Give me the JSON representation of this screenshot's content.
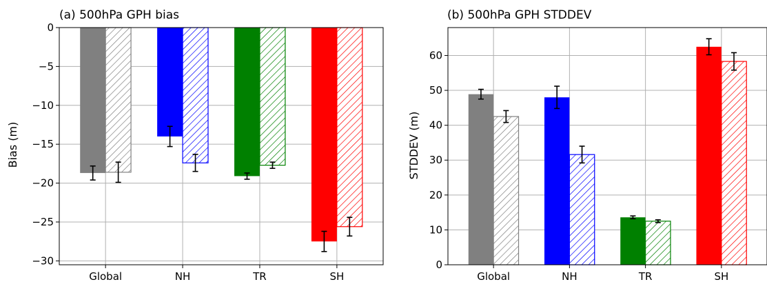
{
  "chart_data": [
    {
      "type": "bar",
      "title": "(a) 500hPa GPH bias",
      "xlabel": "",
      "ylabel": "Bias (m)",
      "ylim": [
        -30.5,
        0
      ],
      "yticks": [
        0,
        -5,
        -10,
        -15,
        -20,
        -25,
        -30
      ],
      "ytick_labels": [
        "0",
        "−5",
        "−10",
        "−15",
        "−20",
        "−25",
        "−30"
      ],
      "categories": [
        "Global",
        "NH",
        "TR",
        "SH"
      ],
      "colors": [
        "#808080",
        "#0000ff",
        "#008000",
        "#ff0000"
      ],
      "grid": true,
      "series": [
        {
          "style": "solid",
          "values": [
            -18.7,
            -14.0,
            -19.1,
            -27.5
          ],
          "errors": [
            0.9,
            1.3,
            0.4,
            1.3
          ]
        },
        {
          "style": "hatched",
          "values": [
            -18.6,
            -17.4,
            -17.7,
            -25.6
          ],
          "errors": [
            1.3,
            1.1,
            0.4,
            1.2
          ]
        }
      ]
    },
    {
      "type": "bar",
      "title": "(b) 500hPa GPH STDDEV",
      "xlabel": "",
      "ylabel": "STDDEV (m)",
      "ylim": [
        0,
        68
      ],
      "yticks": [
        0,
        10,
        20,
        30,
        40,
        50,
        60
      ],
      "ytick_labels": [
        "0",
        "10",
        "20",
        "30",
        "40",
        "50",
        "60"
      ],
      "categories": [
        "Global",
        "NH",
        "TR",
        "SH"
      ],
      "colors": [
        "#808080",
        "#0000ff",
        "#008000",
        "#ff0000"
      ],
      "grid": true,
      "series": [
        {
          "style": "solid",
          "values": [
            48.9,
            48.0,
            13.6,
            62.5
          ],
          "errors": [
            1.4,
            3.2,
            0.4,
            2.3
          ]
        },
        {
          "style": "hatched",
          "values": [
            42.5,
            31.6,
            12.5,
            58.3
          ],
          "errors": [
            1.7,
            2.4,
            0.4,
            2.5
          ]
        }
      ]
    }
  ]
}
